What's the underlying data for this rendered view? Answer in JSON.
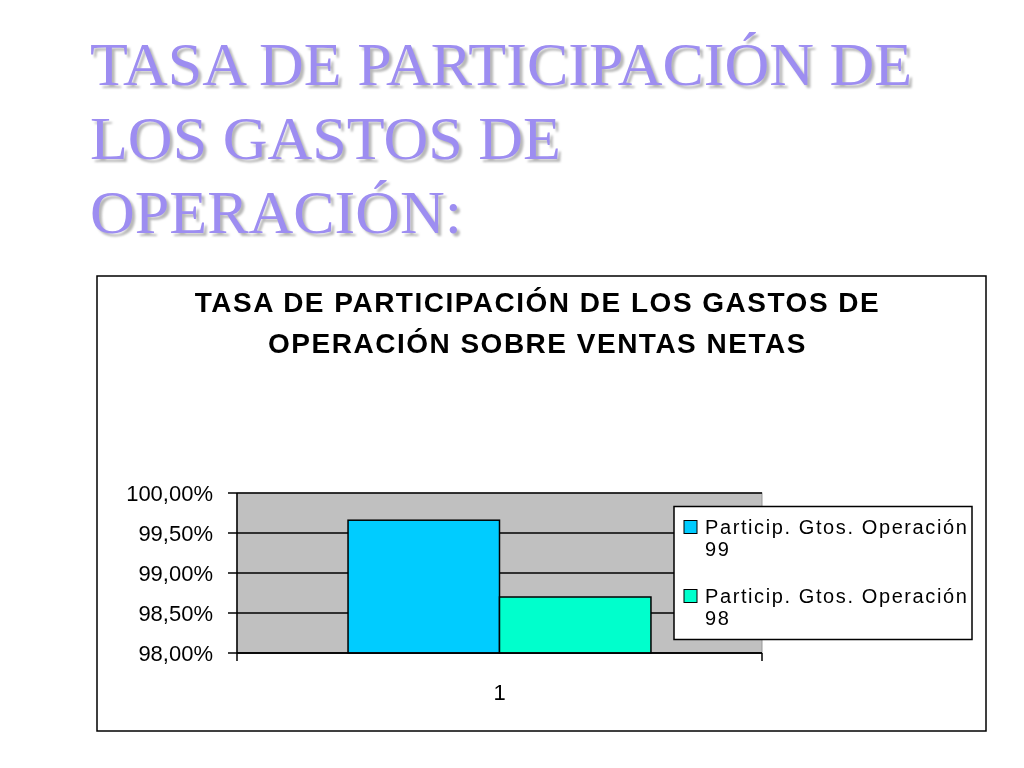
{
  "chart_data": {
    "type": "bar",
    "title": "TASA DE PARTICIPACIÓN DE LOS GASTOS DE OPERACIÓN:",
    "subtitle": "TASA DE PARTICIPACIÓN DE LOS GASTOS DE OPERACIÓN SOBRE VENTAS NETAS",
    "categories": [
      "1"
    ],
    "series": [
      {
        "name": "Particip. Gtos. Operación 99",
        "color": "#00ccff",
        "values": [
          99.66
        ]
      },
      {
        "name": "Particip. Gtos. Operación 98",
        "color": "#00ffcc",
        "values": [
          98.7
        ]
      }
    ],
    "ylim": [
      98,
      100
    ],
    "yticks": [
      {
        "value": 98,
        "label": "98,00%"
      },
      {
        "value": 98.5,
        "label": "98,50%"
      },
      {
        "value": 99,
        "label": "99,00%"
      },
      {
        "value": 99.5,
        "label": "99,50%"
      },
      {
        "value": 100,
        "label": "100,00%"
      }
    ],
    "grid": "y",
    "legend": "right"
  }
}
